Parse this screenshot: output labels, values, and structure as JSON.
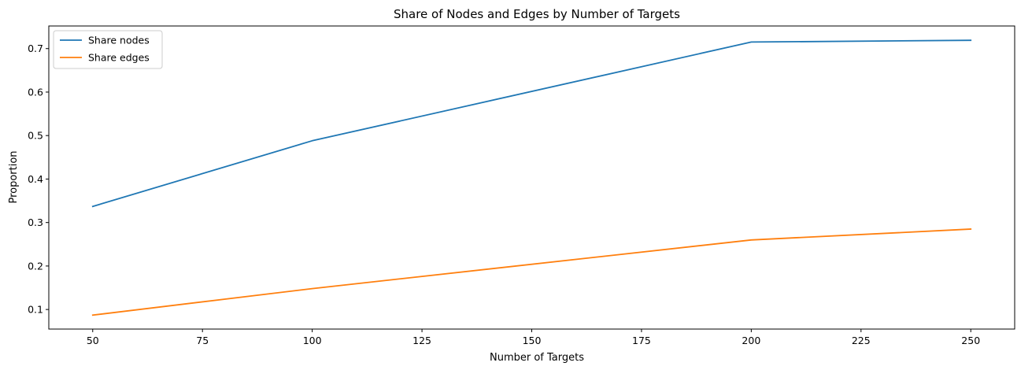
{
  "chart_data": {
    "type": "line",
    "title": "Share of Nodes and Edges by Number of Targets",
    "xlabel": "Number of Targets",
    "ylabel": "Proportion",
    "x": [
      50,
      100,
      200,
      250
    ],
    "series": [
      {
        "name": "Share nodes",
        "color": "#1f77b4",
        "values": [
          0.337,
          0.488,
          0.715,
          0.719
        ]
      },
      {
        "name": "Share edges",
        "color": "#ff7f0e",
        "values": [
          0.087,
          0.148,
          0.26,
          0.285
        ]
      }
    ],
    "xlim": [
      40,
      260
    ],
    "ylim": [
      0.055,
      0.752
    ],
    "xticks": [
      50,
      75,
      100,
      125,
      150,
      175,
      200,
      225,
      250
    ],
    "yticks": [
      0.1,
      0.2,
      0.3,
      0.4,
      0.5,
      0.6,
      0.7
    ],
    "xtick_labels": [
      "50",
      "75",
      "100",
      "125",
      "150",
      "175",
      "200",
      "225",
      "250"
    ],
    "ytick_labels": [
      "0.1",
      "0.2",
      "0.3",
      "0.4",
      "0.5",
      "0.6",
      "0.7"
    ],
    "grid": false,
    "legend_position": "top-left"
  }
}
